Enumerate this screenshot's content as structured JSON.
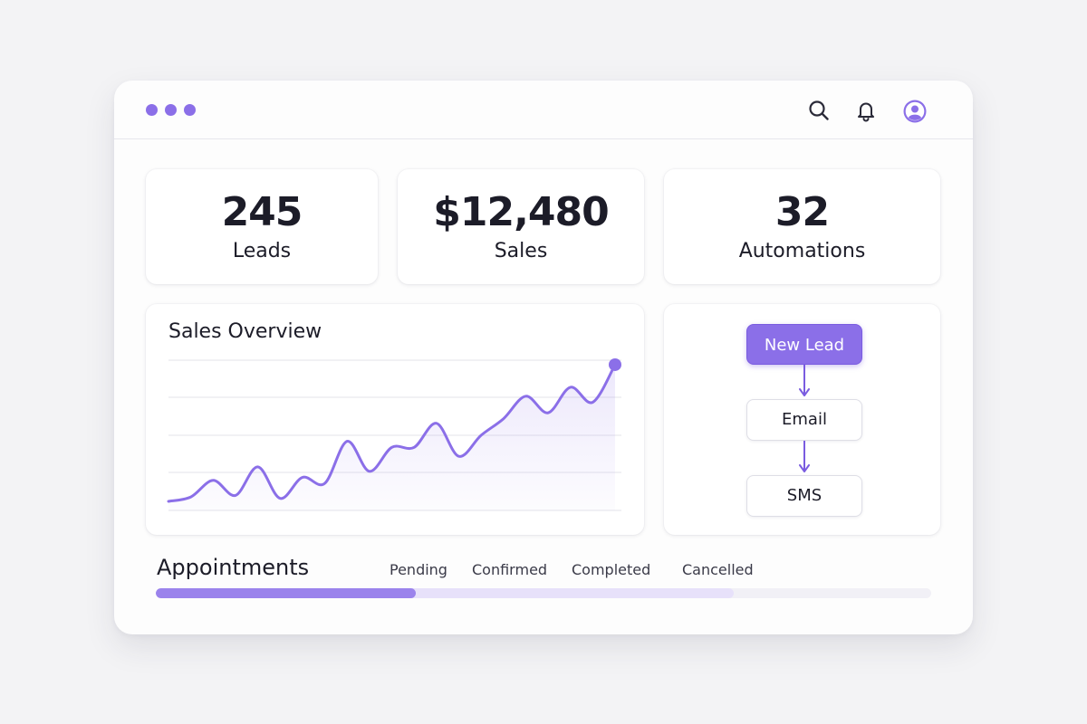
{
  "window": {
    "dots": [
      "#8b6fe8",
      "#8b6fe8",
      "#8b6fe8"
    ],
    "icons": [
      "search-icon",
      "bell-icon",
      "user-avatar-icon"
    ],
    "accent": "#8b6fe8"
  },
  "stats": [
    {
      "value": "245",
      "label": "Leads"
    },
    {
      "value": "$12,480",
      "label": "Sales"
    },
    {
      "value": "32",
      "label": "Automations"
    }
  ],
  "sales_overview": {
    "title": "Sales Overview"
  },
  "chart_data": {
    "type": "line",
    "title": "Sales Overview",
    "xlabel": "",
    "ylabel": "",
    "grid": true,
    "ylim": [
      0,
      100
    ],
    "x": [
      0,
      1,
      2,
      3,
      4,
      5,
      6,
      7,
      8,
      9,
      10,
      11,
      12,
      13,
      14,
      15,
      16,
      17,
      18,
      19,
      20
    ],
    "series": [
      {
        "values": [
          6,
          9,
          20,
          10,
          29,
          8,
          22,
          18,
          46,
          26,
          42,
          42,
          58,
          36,
          50,
          61,
          76,
          65,
          82,
          72,
          97
        ]
      }
    ]
  },
  "automation_flow": {
    "nodes": [
      "New Lead",
      "Email",
      "SMS"
    ]
  },
  "appointments": {
    "title": "Appointments",
    "statuses": [
      "Pending",
      "Confirmed",
      "Completed",
      "Cancelled"
    ],
    "progress": {
      "filled_fraction": 0.335,
      "secondary_fraction": 0.745,
      "colors": [
        "#9b83ec",
        "#e7e1fa",
        "#f1f0f6"
      ]
    }
  }
}
